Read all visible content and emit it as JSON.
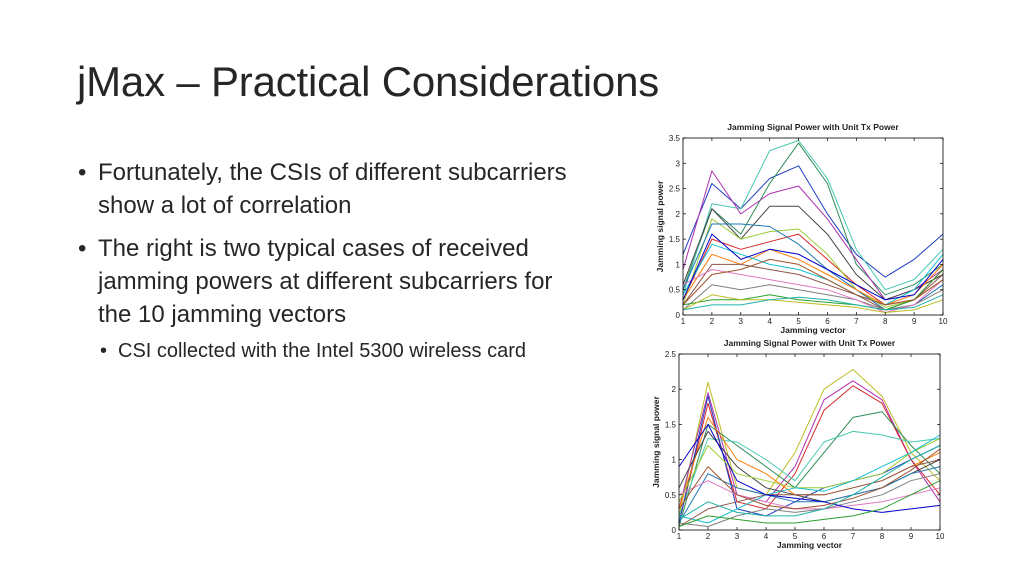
{
  "slide": {
    "title": "jMax – Practical Considerations",
    "bullets": [
      "Fortunately, the CSIs of different subcarriers show a lot of correlation",
      "The right is two typical cases of received jamming powers at different subcarriers for the 10 jamming vectors"
    ],
    "sub_bullets": [
      "CSI collected with the Intel 5300 wireless card"
    ]
  },
  "chart_data": [
    {
      "type": "line",
      "title": "Jamming Signal Power with Unit Tx Power",
      "xlabel": "Jamming vector",
      "ylabel": "Jamming signal power",
      "x": [
        1,
        2,
        3,
        4,
        5,
        6,
        7,
        8,
        9,
        10
      ],
      "xlim": [
        1,
        10
      ],
      "ylim": [
        0,
        3.5
      ],
      "yticks": [
        "0",
        "0.5",
        "1",
        "1.5",
        "2",
        "2.5",
        "3",
        "3.5"
      ],
      "xticks": [
        "1",
        "2",
        "3",
        "4",
        "5",
        "6",
        "7",
        "8",
        "9",
        "10"
      ],
      "grid": false,
      "series": [
        {
          "color": "#1f3fbf",
          "values": [
            1.2,
            2.6,
            2.1,
            2.7,
            2.95,
            2.0,
            1.2,
            0.75,
            1.1,
            1.6
          ]
        },
        {
          "color": "#2e8b57",
          "values": [
            0.5,
            2.1,
            1.6,
            2.6,
            3.4,
            2.6,
            1.0,
            0.4,
            0.6,
            1.0
          ]
        },
        {
          "color": "#48c9b0",
          "values": [
            0.4,
            2.2,
            2.1,
            3.25,
            3.45,
            2.7,
            1.3,
            0.5,
            0.7,
            1.3
          ]
        },
        {
          "color": "#b030b0",
          "values": [
            0.9,
            2.85,
            2.0,
            2.4,
            2.55,
            1.9,
            1.1,
            0.3,
            0.5,
            0.9
          ]
        },
        {
          "color": "#444444",
          "values": [
            0.6,
            2.1,
            1.5,
            2.15,
            2.15,
            1.6,
            0.8,
            0.3,
            0.5,
            0.8
          ]
        },
        {
          "color": "#d62728",
          "values": [
            0.3,
            1.5,
            1.3,
            1.45,
            1.6,
            1.1,
            0.6,
            0.2,
            0.3,
            0.9
          ]
        },
        {
          "color": "#9acd32",
          "values": [
            0.2,
            1.9,
            1.5,
            1.65,
            1.7,
            1.2,
            0.5,
            0.15,
            0.3,
            0.7
          ]
        },
        {
          "color": "#1f77b4",
          "values": [
            0.5,
            1.8,
            1.8,
            1.75,
            1.4,
            0.9,
            0.5,
            0.1,
            0.2,
            0.6
          ]
        },
        {
          "color": "#ff7f0e",
          "values": [
            0.3,
            1.2,
            1.0,
            1.3,
            1.1,
            0.8,
            0.5,
            0.2,
            0.4,
            1.0
          ]
        },
        {
          "color": "#8c564b",
          "values": [
            0.2,
            1.0,
            1.0,
            0.9,
            0.8,
            0.6,
            0.4,
            0.1,
            0.3,
            0.8
          ]
        },
        {
          "color": "#17becf",
          "values": [
            0.4,
            1.4,
            1.2,
            1.0,
            0.9,
            0.7,
            0.4,
            0.2,
            0.5,
            1.2
          ]
        },
        {
          "color": "#7f7f7f",
          "values": [
            0.1,
            0.6,
            0.5,
            0.6,
            0.5,
            0.4,
            0.3,
            0.1,
            0.2,
            0.5
          ]
        },
        {
          "color": "#2ca02c",
          "values": [
            0.2,
            0.3,
            0.3,
            0.4,
            0.3,
            0.25,
            0.2,
            0.1,
            0.3,
            0.9
          ]
        },
        {
          "color": "#e377c2",
          "values": [
            0.6,
            0.9,
            0.8,
            0.7,
            0.6,
            0.5,
            0.3,
            0.05,
            0.2,
            0.7
          ]
        },
        {
          "color": "#bcbd22",
          "values": [
            0.1,
            0.4,
            0.3,
            0.3,
            0.25,
            0.2,
            0.15,
            0.05,
            0.1,
            0.3
          ]
        },
        {
          "color": "#0000cd",
          "values": [
            0.3,
            1.6,
            1.1,
            1.3,
            1.2,
            0.9,
            0.6,
            0.3,
            0.4,
            1.1
          ]
        },
        {
          "color": "#a0522d",
          "values": [
            0.2,
            0.8,
            0.9,
            1.1,
            1.0,
            0.7,
            0.4,
            0.2,
            0.3,
            0.7
          ]
        },
        {
          "color": "#20b2aa",
          "values": [
            0.1,
            0.2,
            0.2,
            0.3,
            0.35,
            0.3,
            0.2,
            0.1,
            0.15,
            0.4
          ]
        }
      ]
    },
    {
      "type": "line",
      "title": "Jamming Signal Power with Unit Tx Power",
      "xlabel": "Jamming vector",
      "ylabel": "Jamming signal power",
      "x": [
        1,
        2,
        3,
        4,
        5,
        6,
        7,
        8,
        9,
        10
      ],
      "xlim": [
        1,
        10
      ],
      "ylim": [
        0,
        2.5
      ],
      "yticks": [
        "0",
        "0.5",
        "1",
        "1.5",
        "2",
        "2.5"
      ],
      "xticks": [
        "1",
        "2",
        "3",
        "4",
        "5",
        "6",
        "7",
        "8",
        "9",
        "10"
      ],
      "grid": false,
      "series": [
        {
          "color": "#bcbd22",
          "values": [
            0.2,
            2.1,
            0.6,
            0.5,
            1.1,
            2.0,
            2.28,
            1.9,
            1.1,
            0.7
          ]
        },
        {
          "color": "#b030b0",
          "values": [
            0.3,
            1.95,
            0.5,
            0.4,
            0.9,
            1.85,
            2.12,
            1.85,
            1.0,
            0.4
          ]
        },
        {
          "color": "#d62728",
          "values": [
            0.1,
            1.8,
            0.4,
            0.3,
            0.8,
            1.7,
            2.05,
            1.8,
            1.0,
            0.5
          ]
        },
        {
          "color": "#2e8b57",
          "values": [
            0.05,
            1.5,
            1.2,
            0.9,
            0.6,
            1.1,
            1.6,
            1.68,
            1.2,
            0.8
          ]
        },
        {
          "color": "#48c9b0",
          "values": [
            0.2,
            1.3,
            1.25,
            1.0,
            0.7,
            1.25,
            1.4,
            1.35,
            1.25,
            1.3
          ]
        },
        {
          "color": "#1f3fbf",
          "values": [
            0.1,
            1.9,
            0.3,
            0.2,
            0.4,
            0.6,
            0.7,
            0.8,
            1.0,
            1.2
          ]
        },
        {
          "color": "#ff7f0e",
          "values": [
            0.3,
            1.6,
            1.0,
            0.8,
            0.5,
            0.5,
            0.6,
            0.7,
            0.9,
            1.1
          ]
        },
        {
          "color": "#444444",
          "values": [
            0.6,
            1.4,
            0.9,
            0.6,
            0.5,
            0.4,
            0.5,
            0.6,
            0.8,
            1.0
          ]
        },
        {
          "color": "#9acd32",
          "values": [
            0.4,
            1.2,
            0.8,
            0.7,
            0.6,
            0.6,
            0.7,
            0.8,
            1.1,
            1.3
          ]
        },
        {
          "color": "#1f77b4",
          "values": [
            0.1,
            0.8,
            0.6,
            0.5,
            0.4,
            0.4,
            0.5,
            0.6,
            0.8,
            0.9
          ]
        },
        {
          "color": "#e377c2",
          "values": [
            0.5,
            0.7,
            0.5,
            0.4,
            0.3,
            0.3,
            0.35,
            0.4,
            0.5,
            0.6
          ]
        },
        {
          "color": "#17becf",
          "values": [
            0.2,
            0.1,
            0.3,
            0.5,
            0.6,
            0.55,
            0.7,
            0.9,
            1.1,
            1.35
          ]
        },
        {
          "color": "#8c564b",
          "values": [
            0.05,
            0.3,
            0.4,
            0.5,
            0.5,
            0.5,
            0.6,
            0.7,
            0.9,
            1.0
          ]
        },
        {
          "color": "#7f7f7f",
          "values": [
            0.1,
            0.05,
            0.2,
            0.3,
            0.25,
            0.3,
            0.4,
            0.5,
            0.7,
            0.8
          ]
        },
        {
          "color": "#0000cd",
          "values": [
            0.9,
            1.5,
            0.7,
            0.5,
            0.45,
            0.4,
            0.3,
            0.25,
            0.3,
            0.35
          ]
        },
        {
          "color": "#2ca02c",
          "values": [
            0.05,
            0.2,
            0.15,
            0.1,
            0.1,
            0.15,
            0.2,
            0.3,
            0.5,
            0.7
          ]
        },
        {
          "color": "#a0522d",
          "values": [
            0.3,
            0.9,
            0.5,
            0.35,
            0.3,
            0.35,
            0.45,
            0.6,
            0.85,
            1.15
          ]
        },
        {
          "color": "#20b2aa",
          "values": [
            0.15,
            0.4,
            0.25,
            0.2,
            0.2,
            0.3,
            0.5,
            0.75,
            1.0,
            1.2
          ]
        }
      ]
    }
  ]
}
